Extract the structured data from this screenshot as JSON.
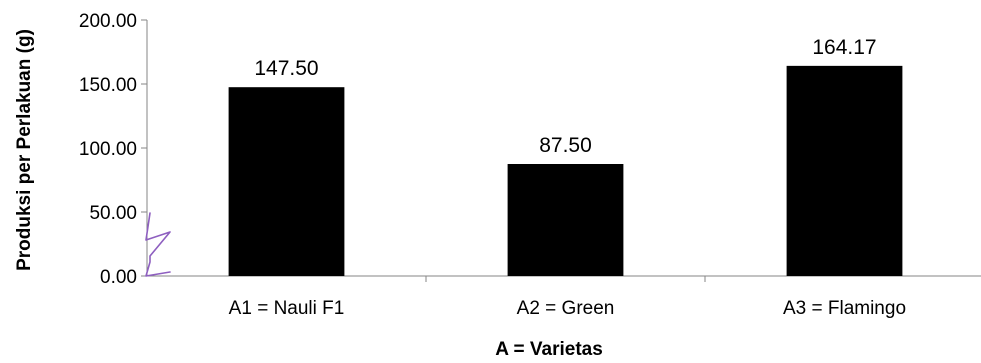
{
  "chart_data": {
    "type": "bar",
    "title": "",
    "xlabel": "A = Varietas",
    "ylabel": "Produksi per Perlakuan (g)",
    "categories": [
      "A1 = Nauli F1",
      "A2 = Green",
      "A3 = Flamingo"
    ],
    "values": [
      147.5,
      87.5,
      164.17
    ],
    "value_labels": [
      "147.50",
      "87.50",
      "164.17"
    ],
    "ylim": [
      0,
      200
    ],
    "yticks": [
      0,
      50,
      100,
      150,
      200
    ],
    "ytick_labels": [
      "0.00",
      "50.00",
      "100.00",
      "150.00",
      "200.00"
    ],
    "grid": false,
    "legend": "none",
    "bar_color": "#000000",
    "annotation_color": "#8e5fc0"
  }
}
